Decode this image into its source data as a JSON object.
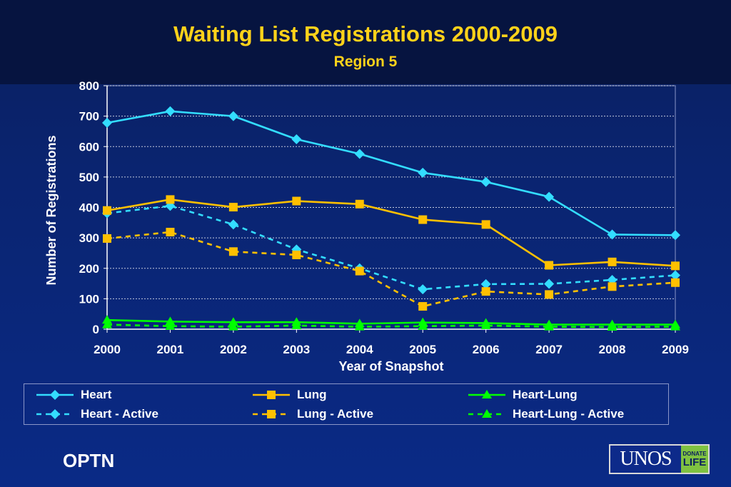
{
  "header": {
    "title": "Waiting List Registrations 2000-2009",
    "subtitle": "Region 5"
  },
  "footer": {
    "left_text": "OPTN",
    "logo": {
      "main_text": "UNOS",
      "badge_line1": "DONATE",
      "badge_line2": "LIFE"
    }
  },
  "colors": {
    "heart": "#33ddff",
    "lung": "#ffc000",
    "heart_lung": "#00ff00",
    "title": "#ffd21a"
  },
  "chart_data": {
    "type": "line",
    "xlabel": "Year of Snapshot",
    "ylabel": "Number of Registrations",
    "ylim": [
      0,
      800
    ],
    "yticks": [
      0,
      100,
      200,
      300,
      400,
      500,
      600,
      700,
      800
    ],
    "grid": true,
    "legend_position": "bottom",
    "categories": [
      "2000",
      "2001",
      "2002",
      "2003",
      "2004",
      "2005",
      "2006",
      "2007",
      "2008",
      "2009"
    ],
    "series": [
      {
        "name": "Heart",
        "color": "#33ddff",
        "marker": "diamond",
        "dashed": false,
        "values": [
          678,
          716,
          700,
          624,
          576,
          514,
          484,
          435,
          311,
          309
        ]
      },
      {
        "name": "Lung",
        "color": "#ffc000",
        "marker": "square",
        "dashed": false,
        "values": [
          390,
          426,
          401,
          421,
          411,
          360,
          344,
          210,
          221,
          208
        ]
      },
      {
        "name": "Heart-Lung",
        "color": "#00ff00",
        "marker": "triangle",
        "dashed": false,
        "values": [
          30,
          25,
          23,
          23,
          18,
          22,
          20,
          15,
          15,
          15
        ]
      },
      {
        "name": "Heart - Active",
        "color": "#33ddff",
        "marker": "diamond",
        "dashed": true,
        "values": [
          381,
          405,
          344,
          262,
          200,
          131,
          148,
          149,
          162,
          177
        ]
      },
      {
        "name": "Lung - Active",
        "color": "#ffc000",
        "marker": "square",
        "dashed": true,
        "values": [
          298,
          319,
          255,
          244,
          191,
          75,
          124,
          114,
          140,
          153
        ]
      },
      {
        "name": "Heart-Lung - Active",
        "color": "#00ff00",
        "marker": "triangle",
        "dashed": true,
        "values": [
          15,
          10,
          8,
          12,
          8,
          10,
          12,
          8,
          7,
          8
        ]
      }
    ]
  }
}
